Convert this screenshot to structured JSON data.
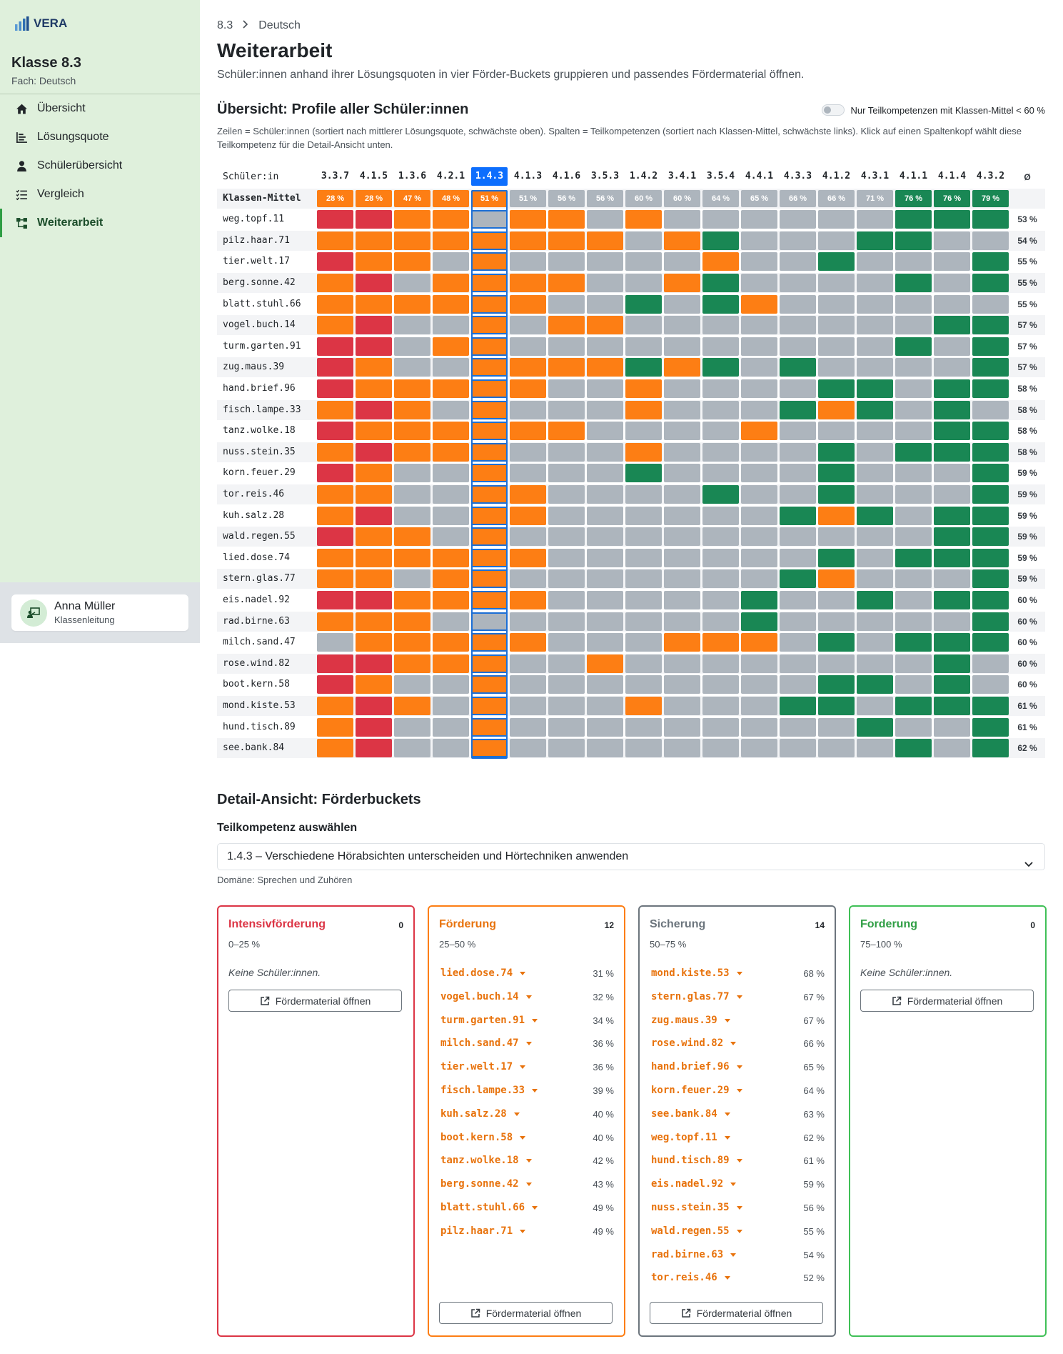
{
  "sidebar": {
    "brand": "VERA",
    "class_title": "Klasse 8.3",
    "subject": "Fach: Deutsch",
    "items": [
      {
        "label": "Übersicht",
        "icon": "home-icon"
      },
      {
        "label": "Lösungsquote",
        "icon": "bar-list-icon"
      },
      {
        "label": "Schülerübersicht",
        "icon": "person-icon"
      },
      {
        "label": "Vergleich",
        "icon": "checklist-icon"
      },
      {
        "label": "Weiterarbeit",
        "icon": "diagram-icon",
        "active": true
      }
    ],
    "user": {
      "name": "Anna Müller",
      "role": "Klassenleitung",
      "icon": "teacher-icon"
    }
  },
  "breadcrumb": [
    "8.3",
    "Deutsch"
  ],
  "page": {
    "title": "Weiterarbeit",
    "subtitle": "Schüler:innen anhand ihrer Lösungsquoten in vier Förder-Buckets gruppieren und passendes Fördermaterial öffnen."
  },
  "heatmap": {
    "title": "Übersicht: Profile aller Schüler:innen",
    "toggle_label": "Nur Teilkompetenzen mit Klassen-Mittel < 60 %",
    "description": "Zeilen = Schüler:innen (sortiert nach mittlerer Lösungsquote, schwächste oben). Spalten = Teilkompetenzen (sortiert nach Klassen-Mittel, schwächste links). Klick auf einen Spaltenkopf wählt diese Teilkompetenz für die Detail-Ansicht unten.",
    "student_header": "Schüler:in",
    "avg_header": "Ø",
    "mean_label": "Klassen-Mittel",
    "selected_column": 4,
    "colors": {
      "r": "#dc3545",
      "o": "#fd7e14",
      "g": "#adb5bd",
      "d": "#198754"
    },
    "columns": [
      "3.3.7",
      "4.1.5",
      "1.3.6",
      "4.2.1",
      "1.4.3",
      "4.1.3",
      "4.1.6",
      "3.5.3",
      "1.4.2",
      "3.4.1",
      "3.5.4",
      "4.4.1",
      "4.3.3",
      "4.1.2",
      "4.3.1",
      "4.1.1",
      "4.1.4",
      "4.3.2"
    ],
    "means": [
      "28 %",
      "28 %",
      "47 %",
      "48 %",
      "51 %",
      "51 %",
      "56 %",
      "56 %",
      "60 %",
      "60 %",
      "64 %",
      "65 %",
      "66 %",
      "66 %",
      "71 %",
      "76 %",
      "76 %",
      "79 %"
    ],
    "mean_levels": "oooooggggggggggddd",
    "rows": [
      {
        "name": "weg.topf.11",
        "cells": "rroogoogoggggggddd",
        "avg": "53 %"
      },
      {
        "name": "pilz.haar.71",
        "cells": "oooooooogodgggddgg",
        "avg": "54 %"
      },
      {
        "name": "tier.welt.17",
        "cells": "roogogggggoggdgggd",
        "avg": "55 %"
      },
      {
        "name": "berg.sonne.42",
        "cells": "orgooooggodggggdgd",
        "avg": "55 %"
      },
      {
        "name": "blatt.stuhl.66",
        "cells": "ooooooggdgdogggggg",
        "avg": "55 %"
      },
      {
        "name": "vogel.buch.14",
        "cells": "orggogooggggggggdd",
        "avg": "57 %"
      },
      {
        "name": "turm.garten.91",
        "cells": "rrgooggggggggggdgd",
        "avg": "57 %"
      },
      {
        "name": "zug.maus.39",
        "cells": "roggoooododgdggggd",
        "avg": "57 %"
      },
      {
        "name": "hand.brief.96",
        "cells": "roooooggoggggddgdd",
        "avg": "58 %"
      },
      {
        "name": "fisch.lampe.33",
        "cells": "orogogggogggdodgdg",
        "avg": "58 %"
      },
      {
        "name": "tanz.wolke.18",
        "cells": "rooooooggggoggggdd",
        "avg": "58 %"
      },
      {
        "name": "nuss.stein.35",
        "cells": "orooogggoggggdgddd",
        "avg": "58 %"
      },
      {
        "name": "korn.feuer.29",
        "cells": "roggogggdggggdgggd",
        "avg": "59 %"
      },
      {
        "name": "tor.reis.46",
        "cells": "ooggooggggdggdgggd",
        "avg": "59 %"
      },
      {
        "name": "kuh.salz.28",
        "cells": "orggooggggggdodgdd",
        "avg": "59 %"
      },
      {
        "name": "wald.regen.55",
        "cells": "roogogggggggggggdd",
        "avg": "59 %"
      },
      {
        "name": "lied.dose.74",
        "cells": "oooooogggggggdgddd",
        "avg": "59 %"
      },
      {
        "name": "stern.glas.77",
        "cells": "oogoogggggggdogggd",
        "avg": "59 %"
      },
      {
        "name": "eis.nadel.92",
        "cells": "rroooogggggdggdgdd",
        "avg": "60 %"
      },
      {
        "name": "rad.birne.63",
        "cells": "oooggggggggdgggggd",
        "avg": "60 %"
      },
      {
        "name": "milch.sand.47",
        "cells": "gooooogggooogdgddd",
        "avg": "60 %"
      },
      {
        "name": "rose.wind.82",
        "cells": "rroooggoggggggggdg",
        "avg": "60 %"
      },
      {
        "name": "boot.kern.58",
        "cells": "roggoggggggggddgdg",
        "avg": "60 %"
      },
      {
        "name": "mond.kiste.53",
        "cells": "orogogggogggddgddd",
        "avg": "61 %"
      },
      {
        "name": "hund.tisch.89",
        "cells": "orggogggggggggdggd",
        "avg": "61 %"
      },
      {
        "name": "see.bank.84",
        "cells": "orggoggggggggggdgd",
        "avg": "62 %"
      }
    ]
  },
  "detail": {
    "title": "Detail-Ansicht: Förderbuckets",
    "select_label": "Teilkompetenz auswählen",
    "selected_option": "1.4.3 – Verschiedene Hörabsichten unterscheiden und Hörtechniken anwenden",
    "domain_note": "Domäne: Sprechen und Zuhören",
    "button_label": "Fördermaterial öffnen",
    "empty_label": "Keine Schüler:innen.",
    "buckets": [
      {
        "title": "Intensivförderung",
        "count": "0",
        "range": "0–25 %",
        "color": "#dc3545",
        "text_color": "#dc3545",
        "students": []
      },
      {
        "title": "Förderung",
        "count": "12",
        "range": "25–50 %",
        "color": "#fd7e14",
        "text_color": "#e8730d",
        "students": [
          {
            "name": "lied.dose.74",
            "pct": "31 %"
          },
          {
            "name": "vogel.buch.14",
            "pct": "32 %"
          },
          {
            "name": "turm.garten.91",
            "pct": "34 %"
          },
          {
            "name": "milch.sand.47",
            "pct": "36 %"
          },
          {
            "name": "tier.welt.17",
            "pct": "36 %"
          },
          {
            "name": "fisch.lampe.33",
            "pct": "39 %"
          },
          {
            "name": "kuh.salz.28",
            "pct": "40 %"
          },
          {
            "name": "boot.kern.58",
            "pct": "40 %"
          },
          {
            "name": "tanz.wolke.18",
            "pct": "42 %"
          },
          {
            "name": "berg.sonne.42",
            "pct": "43 %"
          },
          {
            "name": "blatt.stuhl.66",
            "pct": "49 %"
          },
          {
            "name": "pilz.haar.71",
            "pct": "49 %"
          }
        ]
      },
      {
        "title": "Sicherung",
        "count": "14",
        "range": "50–75 %",
        "color": "#6c757d",
        "text_color": "#6c757d",
        "students": [
          {
            "name": "mond.kiste.53",
            "pct": "68 %"
          },
          {
            "name": "stern.glas.77",
            "pct": "67 %"
          },
          {
            "name": "zug.maus.39",
            "pct": "67 %"
          },
          {
            "name": "rose.wind.82",
            "pct": "66 %"
          },
          {
            "name": "hand.brief.96",
            "pct": "65 %"
          },
          {
            "name": "korn.feuer.29",
            "pct": "64 %"
          },
          {
            "name": "see.bank.84",
            "pct": "63 %"
          },
          {
            "name": "weg.topf.11",
            "pct": "62 %"
          },
          {
            "name": "hund.tisch.89",
            "pct": "61 %"
          },
          {
            "name": "eis.nadel.92",
            "pct": "59 %"
          },
          {
            "name": "nuss.stein.35",
            "pct": "56 %"
          },
          {
            "name": "wald.regen.55",
            "pct": "55 %"
          },
          {
            "name": "rad.birne.63",
            "pct": "54 %"
          },
          {
            "name": "tor.reis.46",
            "pct": "52 %"
          }
        ]
      },
      {
        "title": "Forderung",
        "count": "0",
        "range": "75–100 %",
        "color": "#40c057",
        "text_color": "#2f9e44",
        "students": []
      }
    ],
    "student_name_color": "#e8730d"
  }
}
